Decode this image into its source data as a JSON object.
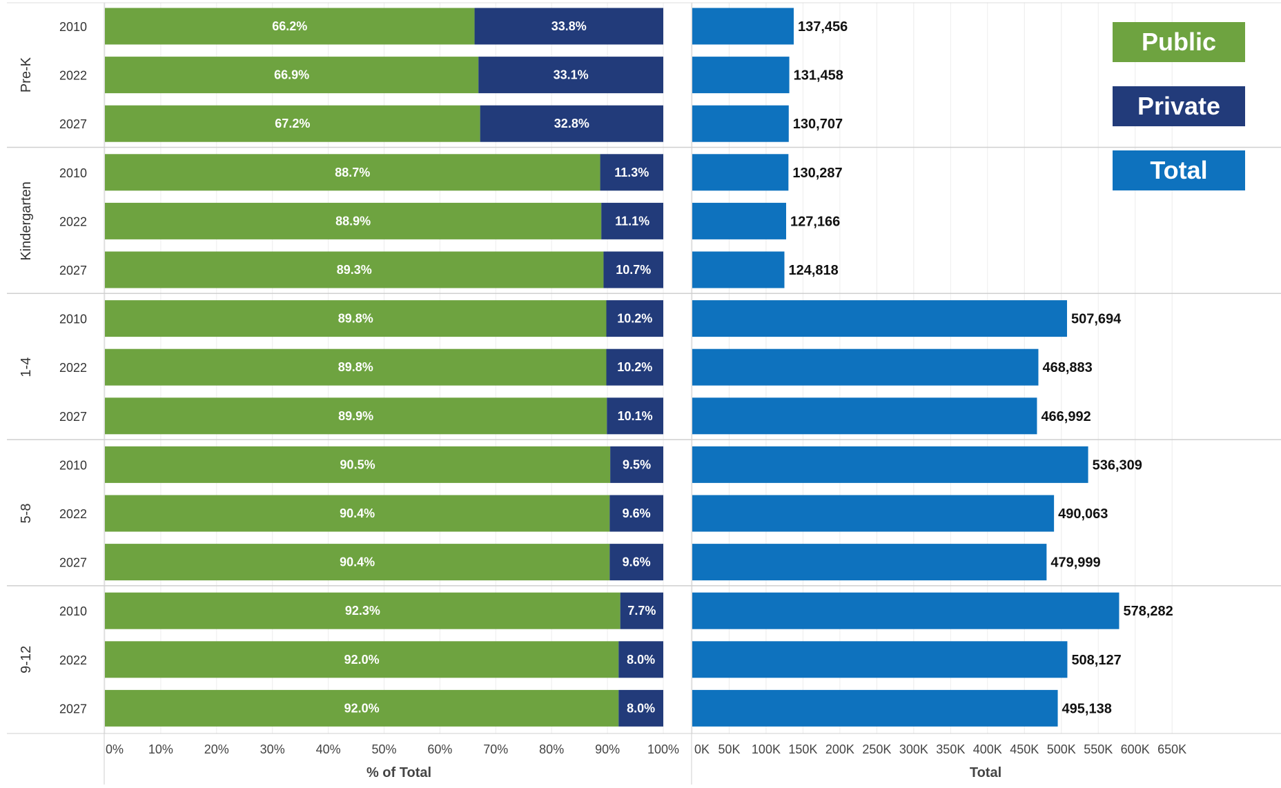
{
  "chart_data": {
    "type": "bar",
    "layout": "stacked-percent-and-total",
    "groups": [
      "Pre-K",
      "Kindergarten",
      "1-4",
      "5-8",
      "9-12"
    ],
    "years": [
      "2010",
      "2022",
      "2027"
    ],
    "rows": [
      {
        "group": "Pre-K",
        "year": "2010",
        "public_pct": 66.2,
        "private_pct": 33.8,
        "total": 137456
      },
      {
        "group": "Pre-K",
        "year": "2022",
        "public_pct": 66.9,
        "private_pct": 33.1,
        "total": 131458
      },
      {
        "group": "Pre-K",
        "year": "2027",
        "public_pct": 67.2,
        "private_pct": 32.8,
        "total": 130707
      },
      {
        "group": "Kindergarten",
        "year": "2010",
        "public_pct": 88.7,
        "private_pct": 11.3,
        "total": 130287
      },
      {
        "group": "Kindergarten",
        "year": "2022",
        "public_pct": 88.9,
        "private_pct": 11.1,
        "total": 127166
      },
      {
        "group": "Kindergarten",
        "year": "2027",
        "public_pct": 89.3,
        "private_pct": 10.7,
        "total": 124818
      },
      {
        "group": "1-4",
        "year": "2010",
        "public_pct": 89.8,
        "private_pct": 10.2,
        "total": 507694
      },
      {
        "group": "1-4",
        "year": "2022",
        "public_pct": 89.8,
        "private_pct": 10.2,
        "total": 468883
      },
      {
        "group": "1-4",
        "year": "2027",
        "public_pct": 89.9,
        "private_pct": 10.1,
        "total": 466992
      },
      {
        "group": "5-8",
        "year": "2010",
        "public_pct": 90.5,
        "private_pct": 9.5,
        "total": 536309
      },
      {
        "group": "5-8",
        "year": "2022",
        "public_pct": 90.4,
        "private_pct": 9.6,
        "total": 490063
      },
      {
        "group": "5-8",
        "year": "2027",
        "public_pct": 90.4,
        "private_pct": 9.6,
        "total": 479999
      },
      {
        "group": "9-12",
        "year": "2010",
        "public_pct": 92.3,
        "private_pct": 7.7,
        "total": 578282
      },
      {
        "group": "9-12",
        "year": "2022",
        "public_pct": 92.0,
        "private_pct": 8.0,
        "total": 508127
      },
      {
        "group": "9-12",
        "year": "2027",
        "public_pct": 92.0,
        "private_pct": 8.0,
        "total": 495138
      }
    ],
    "left_axis": {
      "label": "% of Total",
      "ticks": [
        "0%",
        "10%",
        "20%",
        "30%",
        "40%",
        "50%",
        "60%",
        "70%",
        "80%",
        "90%",
        "100%"
      ],
      "range": [
        0,
        100
      ]
    },
    "right_axis": {
      "label": "Total",
      "ticks": [
        "0K",
        "50K",
        "100K",
        "150K",
        "200K",
        "250K",
        "300K",
        "350K",
        "400K",
        "450K",
        "500K",
        "550K",
        "600K",
        "650K"
      ],
      "range": [
        0,
        650000
      ]
    },
    "legend": [
      {
        "name": "Public",
        "color": "#6ea340"
      },
      {
        "name": "Private",
        "color": "#223b7a"
      },
      {
        "name": "Total",
        "color": "#0e72be"
      }
    ],
    "legend_placement": "top-right",
    "grid": true
  }
}
